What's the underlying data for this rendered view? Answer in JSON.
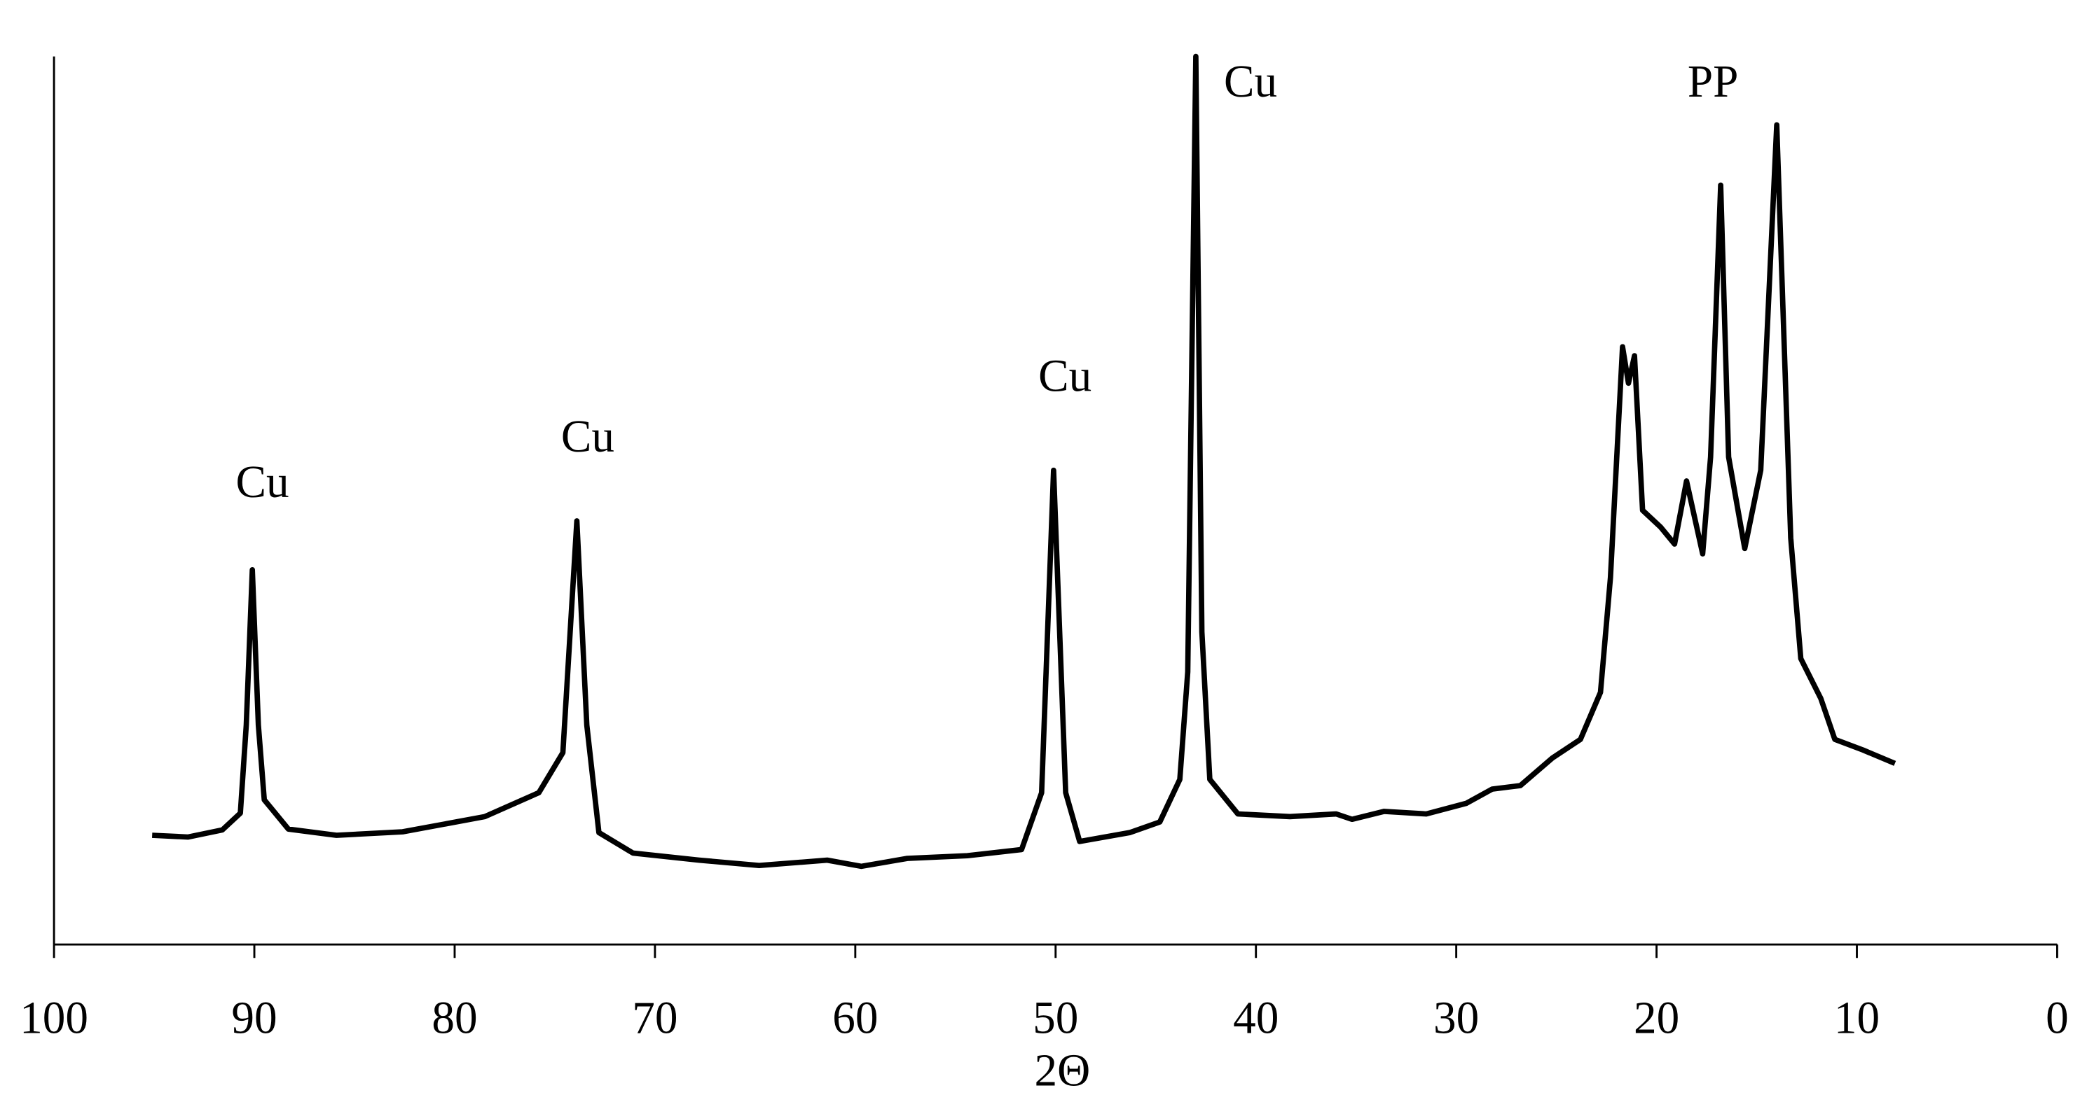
{
  "chart_data": {
    "type": "line",
    "x_label": "2Θ",
    "xlim": [
      100,
      0
    ],
    "xticks": [
      100,
      90,
      80,
      70,
      60,
      50,
      40,
      30,
      20,
      10,
      0
    ],
    "ylim": [
      0,
      100
    ],
    "color": "#000000",
    "x": [
      95.1,
      93.3,
      91.6,
      90.7,
      90.4,
      90.1,
      89.8,
      89.5,
      88.3,
      85.9,
      82.6,
      78.5,
      75.8,
      74.6,
      73.9,
      73.4,
      72.8,
      71.1,
      67.8,
      64.8,
      61.4,
      59.7,
      57.4,
      54.4,
      51.7,
      50.7,
      50.1,
      49.5,
      48.8,
      46.3,
      44.8,
      43.8,
      43.4,
      43.0,
      42.7,
      42.3,
      40.9,
      38.3,
      36.0,
      35.2,
      33.6,
      31.5,
      29.5,
      28.2,
      26.8,
      25.2,
      23.8,
      22.8,
      22.3,
      21.7,
      21.4,
      21.1,
      20.7,
      19.8,
      19.1,
      18.5,
      17.7,
      17.3,
      16.8,
      16.4,
      15.6,
      14.8,
      14.0,
      13.3,
      12.8,
      11.8,
      11.1,
      9.7,
      8.1
    ],
    "values": [
      12.3,
      12.1,
      12.9,
      14.8,
      24.7,
      42.2,
      24.7,
      16.3,
      13.0,
      12.3,
      12.7,
      14.4,
      17.1,
      21.6,
      47.7,
      24.7,
      12.6,
      10.3,
      9.5,
      8.9,
      9.5,
      8.8,
      9.7,
      10.0,
      10.7,
      17.1,
      53.4,
      17.1,
      11.6,
      12.6,
      13.8,
      18.6,
      30.7,
      100,
      35.2,
      18.6,
      14.7,
      14.4,
      14.7,
      14.1,
      15.0,
      14.7,
      15.9,
      17.5,
      17.9,
      21.0,
      23.1,
      28.4,
      41.3,
      67.3,
      63.2,
      66.3,
      48.9,
      47.0,
      45.1,
      52.2,
      44.0,
      54.9,
      85.5,
      54.9,
      44.6,
      53.4,
      92.3,
      45.8,
      32.2,
      27.7,
      23.1,
      21.9,
      20.4
    ],
    "annotations": [
      "Cu",
      "Cu",
      "Cu",
      "Cu",
      "PP"
    ]
  }
}
